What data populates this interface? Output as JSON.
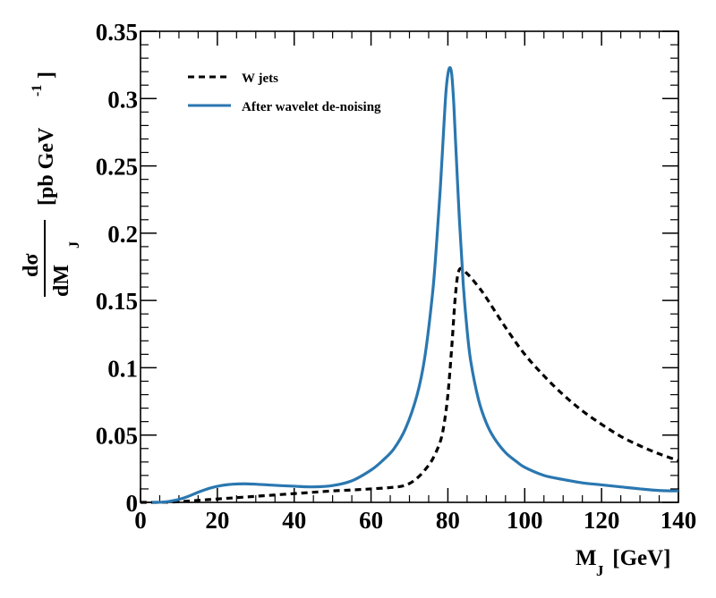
{
  "chart_data": {
    "type": "line",
    "xlim": [
      0,
      140
    ],
    "ylim": [
      0,
      0.35
    ],
    "x_ticks": [
      0,
      20,
      40,
      60,
      80,
      100,
      120,
      140
    ],
    "x_tick_labels": [
      "0",
      "20",
      "40",
      "60",
      "80",
      "100",
      "120",
      "140"
    ],
    "y_ticks": [
      0,
      0.05,
      0.1,
      0.15,
      0.2,
      0.25,
      0.3,
      0.35
    ],
    "y_tick_labels": [
      "0",
      "0.05",
      "0.1",
      "0.15",
      "0.2",
      "0.25",
      "0.3",
      "0.35"
    ],
    "xlabel": {
      "main": "M",
      "sub": "J",
      "unit": " [GeV]"
    },
    "ylabel": {
      "num": "dσ",
      "den_main": "dM",
      "den_sub": "J",
      "unit": "[pb GeV",
      "unit_sup": "-1",
      "unit_close": "]"
    },
    "legend_position": "top-left",
    "series": [
      {
        "name": "W jets",
        "color": "#000000",
        "style": "dashed",
        "x": [
          0,
          5,
          10,
          15,
          20,
          25,
          30,
          35,
          40,
          45,
          50,
          55,
          60,
          65,
          68,
          70,
          72,
          74,
          76,
          78,
          79,
          80,
          81,
          82,
          83,
          85,
          88,
          90,
          95,
          100,
          105,
          110,
          115,
          120,
          125,
          130,
          135,
          140
        ],
        "y": [
          0,
          0,
          0.0005,
          0.0015,
          0.0025,
          0.0035,
          0.0045,
          0.0055,
          0.0065,
          0.0075,
          0.0085,
          0.0092,
          0.01,
          0.011,
          0.012,
          0.014,
          0.018,
          0.024,
          0.032,
          0.045,
          0.058,
          0.08,
          0.115,
          0.155,
          0.173,
          0.17,
          0.16,
          0.152,
          0.13,
          0.11,
          0.094,
          0.08,
          0.068,
          0.058,
          0.049,
          0.042,
          0.036,
          0.031
        ]
      },
      {
        "name": "After wavelet de-noising",
        "color": "#2a77b0",
        "style": "solid",
        "x": [
          3,
          6,
          9,
          12,
          15,
          18,
          21,
          24,
          27,
          30,
          33,
          36,
          40,
          45,
          50,
          55,
          60,
          63,
          66,
          69,
          72,
          74,
          76,
          77,
          78,
          79,
          79.5,
          80,
          80.5,
          81,
          81.5,
          82,
          83,
          84,
          85,
          86,
          88,
          90,
          92,
          95,
          98,
          100,
          105,
          110,
          115,
          120,
          125,
          130,
          135,
          140
        ],
        "y": [
          0,
          0.0002,
          0.0015,
          0.004,
          0.0075,
          0.0105,
          0.0125,
          0.0135,
          0.0138,
          0.0135,
          0.013,
          0.0125,
          0.012,
          0.0115,
          0.0125,
          0.016,
          0.024,
          0.031,
          0.04,
          0.055,
          0.08,
          0.108,
          0.155,
          0.19,
          0.232,
          0.282,
          0.305,
          0.318,
          0.323,
          0.318,
          0.298,
          0.268,
          0.21,
          0.162,
          0.128,
          0.104,
          0.076,
          0.059,
          0.048,
          0.037,
          0.03,
          0.026,
          0.02,
          0.017,
          0.0145,
          0.013,
          0.0115,
          0.01,
          0.0088,
          0.0085
        ]
      }
    ]
  }
}
